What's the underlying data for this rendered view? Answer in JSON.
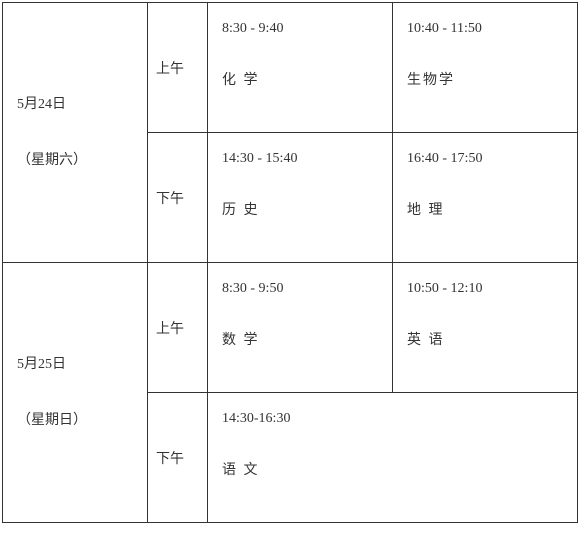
{
  "days": [
    {
      "date": "5月24日",
      "weekday": "（星期六）",
      "sessions": [
        {
          "period": "上午",
          "slots": [
            {
              "time": "8:30 - 9:40",
              "subject": "化 学"
            },
            {
              "time": "10:40 - 11:50",
              "subject": "生物学"
            }
          ]
        },
        {
          "period": "下午",
          "slots": [
            {
              "time": "14:30 - 15:40",
              "subject": "历 史"
            },
            {
              "time": "16:40 - 17:50",
              "subject": "地 理"
            }
          ]
        }
      ]
    },
    {
      "date": "5月25日",
      "weekday": "（星期日）",
      "sessions": [
        {
          "period": "上午",
          "slots": [
            {
              "time": "8:30 - 9:50",
              "subject": "数 学"
            },
            {
              "time": "10:50 - 12:10",
              "subject": "英 语"
            }
          ]
        },
        {
          "period": "下午",
          "slots": [
            {
              "time": "14:30-16:30",
              "subject": "语 文"
            }
          ]
        }
      ]
    }
  ]
}
